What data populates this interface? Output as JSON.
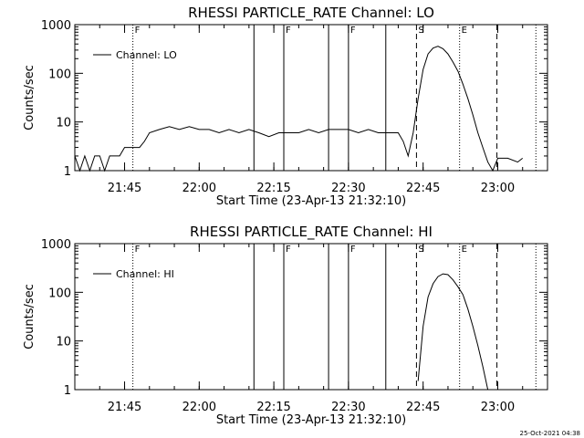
{
  "chart_data": [
    {
      "type": "line",
      "title": "RHESSI PARTICLE_RATE Channel: LO",
      "xlabel": "Start Time (23-Apr-13 21:32:10)",
      "ylabel": "Counts/sec",
      "yscale": "log",
      "ylim": [
        1,
        1000
      ],
      "xlim": [
        "21:35",
        "23:10"
      ],
      "xticks": [
        "21:45",
        "22:00",
        "22:15",
        "22:30",
        "22:45",
        "23:00"
      ],
      "yticks": [
        "1",
        "10",
        "100",
        "1000"
      ],
      "legend": "Channel: LO",
      "legend_position": "top-left",
      "series": [
        {
          "name": "Channel: LO",
          "x": [
            "21:35",
            "21:36",
            "21:37",
            "21:38",
            "21:39",
            "21:40",
            "21:41",
            "21:42",
            "21:43",
            "21:44",
            "21:45",
            "21:46",
            "21:47",
            "21:48",
            "21:49",
            "21:50",
            "21:52",
            "21:54",
            "21:56",
            "21:58",
            "22:00",
            "22:02",
            "22:04",
            "22:06",
            "22:08",
            "22:10",
            "22:12",
            "22:14",
            "22:16",
            "22:18",
            "22:20",
            "22:22",
            "22:24",
            "22:26",
            "22:28",
            "22:30",
            "22:32",
            "22:34",
            "22:36",
            "22:38",
            "22:40",
            "22:41",
            "22:42",
            "22:43",
            "22:44",
            "22:45",
            "22:46",
            "22:47",
            "22:48",
            "22:49",
            "22:50",
            "22:51",
            "22:52",
            "22:53",
            "22:54",
            "22:55",
            "22:56",
            "22:57",
            "22:58",
            "22:59",
            "23:00",
            "23:02",
            "23:04",
            "23:05"
          ],
          "y": [
            2,
            1,
            2,
            1,
            2,
            2,
            1,
            2,
            2,
            2,
            3,
            3,
            3,
            3,
            4,
            6,
            7,
            8,
            7,
            8,
            7,
            7,
            6,
            7,
            6,
            7,
            6,
            5,
            6,
            6,
            6,
            7,
            6,
            7,
            7,
            7,
            6,
            7,
            6,
            6,
            6,
            4,
            2,
            6,
            30,
            120,
            250,
            330,
            360,
            320,
            250,
            170,
            110,
            60,
            30,
            14,
            6,
            3,
            1.5,
            1,
            1.8,
            1.8,
            1.5,
            1.8
          ]
        }
      ],
      "vlines": [
        {
          "time": "21:46:40",
          "style": "dotted",
          "label": "F"
        },
        {
          "time": "22:11:00",
          "style": "solid",
          "label": ""
        },
        {
          "time": "22:17:00",
          "style": "solid",
          "label": "F"
        },
        {
          "time": "22:26:00",
          "style": "solid",
          "label": ""
        },
        {
          "time": "22:30:00",
          "style": "solid",
          "label": "F"
        },
        {
          "time": "22:37:30",
          "style": "solid",
          "label": ""
        },
        {
          "time": "22:43:40",
          "style": "dashed",
          "label": "S"
        },
        {
          "time": "22:52:20",
          "style": "dotted",
          "label": "E"
        },
        {
          "time": "22:59:50",
          "style": "dashed",
          "label": ""
        },
        {
          "time": "23:07:40",
          "style": "dotted",
          "label": ""
        }
      ]
    },
    {
      "type": "line",
      "title": "RHESSI PARTICLE_RATE Channel: HI",
      "xlabel": "Start Time (23-Apr-13 21:32:10)",
      "ylabel": "Counts/sec",
      "yscale": "log",
      "ylim": [
        1,
        1000
      ],
      "xlim": [
        "21:35",
        "23:10"
      ],
      "xticks": [
        "21:45",
        "22:00",
        "22:15",
        "22:30",
        "22:45",
        "23:00"
      ],
      "yticks": [
        "1",
        "10",
        "100",
        "1000"
      ],
      "legend": "Channel: HI",
      "legend_position": "top-left",
      "series": [
        {
          "name": "Channel: HI",
          "x": [
            "22:44",
            "22:45",
            "22:46",
            "22:47",
            "22:48",
            "22:49",
            "22:50",
            "22:51",
            "22:52",
            "22:53",
            "22:54",
            "22:55",
            "22:56",
            "22:57",
            "22:58"
          ],
          "y": [
            1.5,
            20,
            80,
            150,
            210,
            240,
            230,
            180,
            130,
            90,
            45,
            20,
            8,
            3,
            1
          ]
        }
      ],
      "vlines": [
        {
          "time": "21:46:40",
          "style": "dotted",
          "label": "F"
        },
        {
          "time": "22:11:00",
          "style": "solid",
          "label": ""
        },
        {
          "time": "22:17:00",
          "style": "solid",
          "label": "F"
        },
        {
          "time": "22:26:00",
          "style": "solid",
          "label": ""
        },
        {
          "time": "22:30:00",
          "style": "solid",
          "label": "F"
        },
        {
          "time": "22:37:30",
          "style": "solid",
          "label": ""
        },
        {
          "time": "22:43:40",
          "style": "dashed",
          "label": "S"
        },
        {
          "time": "22:52:20",
          "style": "dotted",
          "label": "E"
        },
        {
          "time": "22:59:50",
          "style": "dashed",
          "label": ""
        },
        {
          "time": "23:07:40",
          "style": "dotted",
          "label": ""
        }
      ]
    }
  ],
  "footer": "25-Oct-2021 04:38"
}
